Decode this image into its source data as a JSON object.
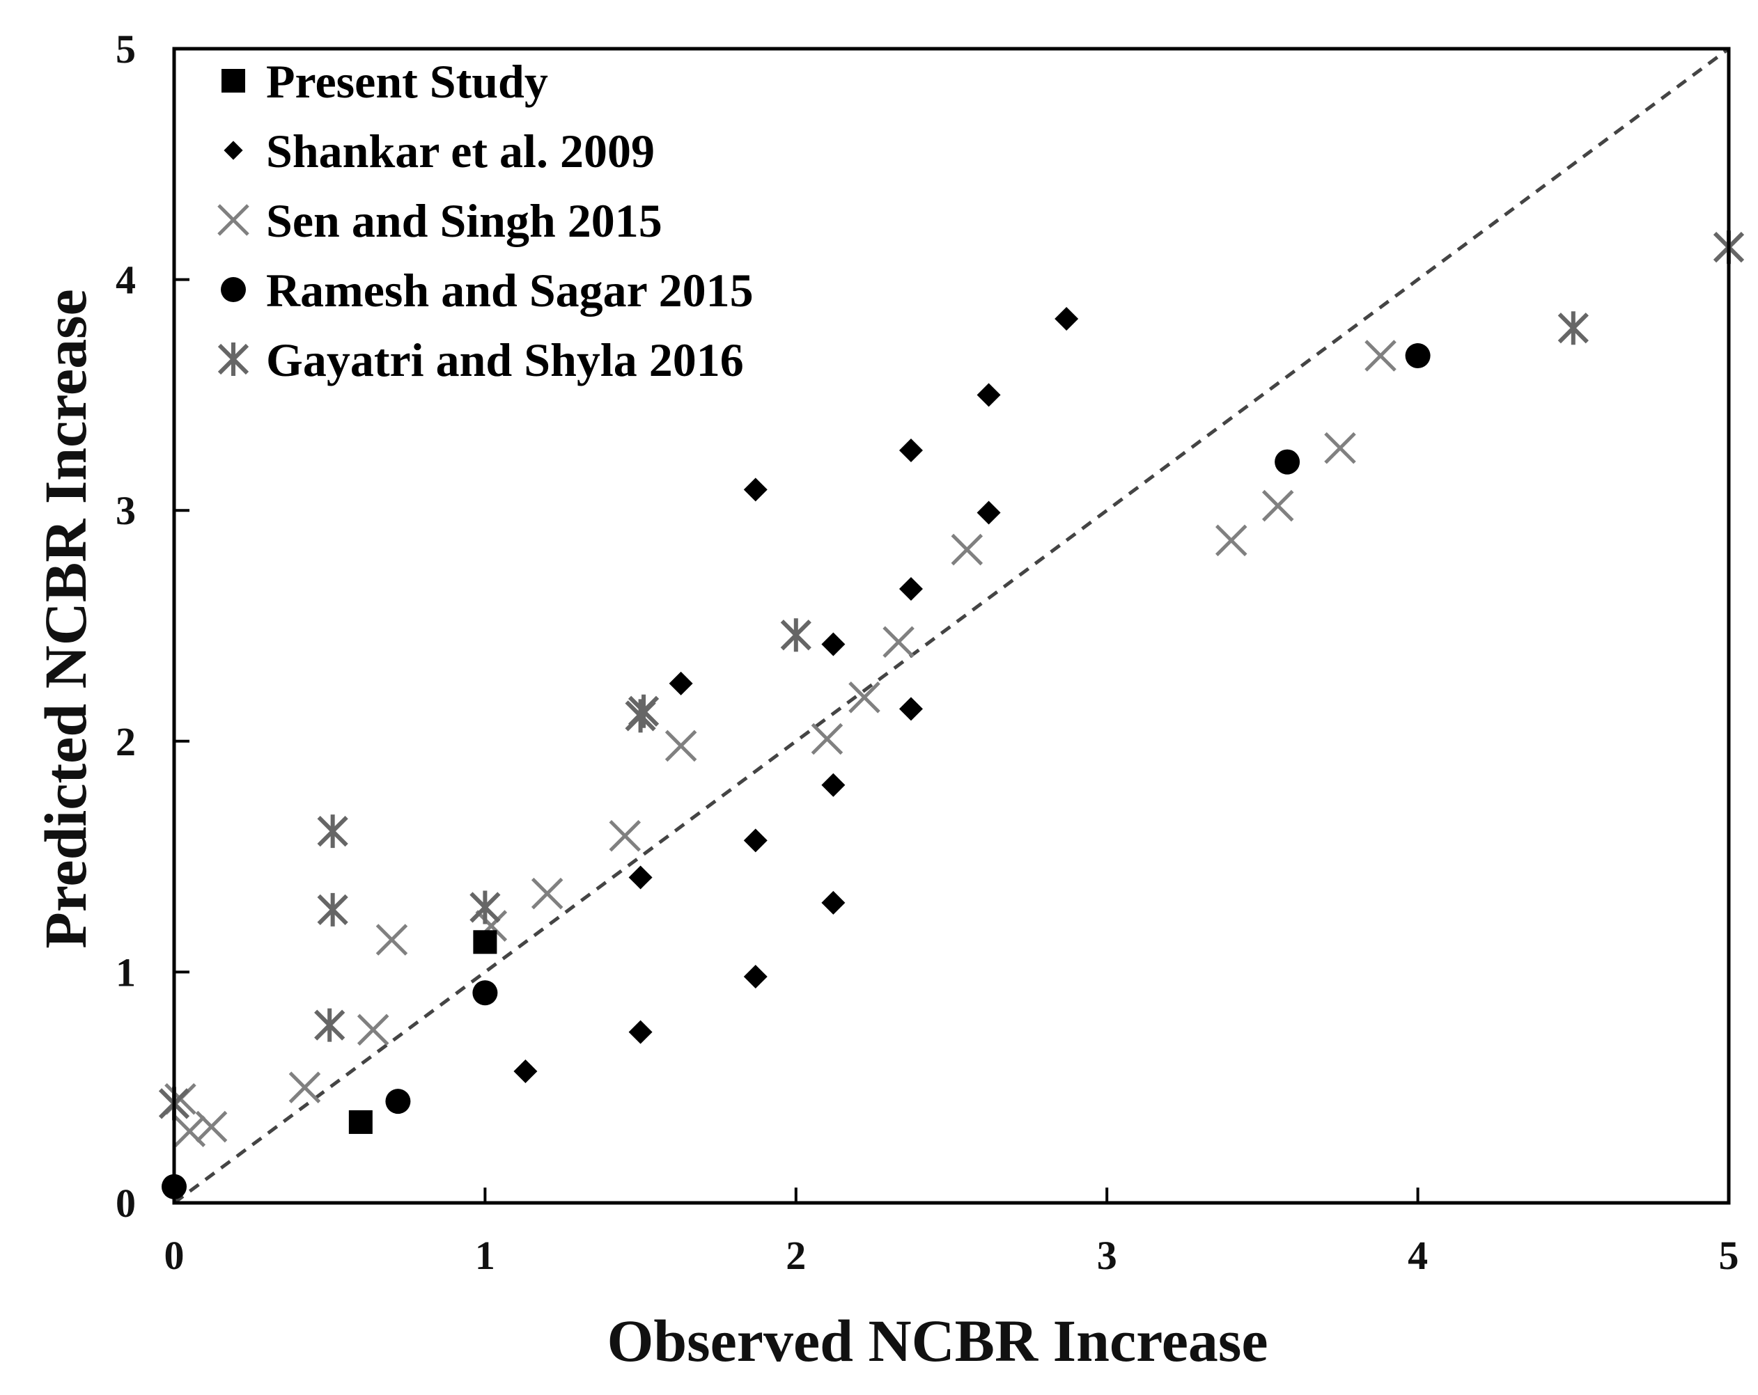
{
  "chart_data": {
    "type": "scatter",
    "title": "",
    "xlabel": "Observed NCBR Increase",
    "ylabel": "Predicted NCBR Increase",
    "xlim": [
      0,
      5
    ],
    "ylim": [
      0,
      5
    ],
    "xticks": [
      "0",
      "1",
      "2",
      "3",
      "4",
      "5"
    ],
    "yticks": [
      "0",
      "1",
      "2",
      "3",
      "4",
      "5"
    ],
    "legend_position": "top-left",
    "reference_line": {
      "name": "1:1 line",
      "style": "dashed",
      "from": [
        0,
        0
      ],
      "to": [
        5,
        5
      ]
    },
    "series": [
      {
        "name": "Present Study",
        "marker": "square",
        "color": "#000000",
        "points": [
          [
            0.6,
            0.35
          ],
          [
            1.0,
            1.13
          ]
        ]
      },
      {
        "name": "Shankar et al. 2009",
        "marker": "diamond",
        "color": "#000000",
        "points": [
          [
            1.13,
            0.57
          ],
          [
            1.5,
            0.74
          ],
          [
            1.5,
            1.41
          ],
          [
            1.63,
            2.25
          ],
          [
            1.87,
            0.98
          ],
          [
            1.87,
            1.57
          ],
          [
            1.87,
            3.09
          ],
          [
            2.12,
            1.3
          ],
          [
            2.12,
            1.81
          ],
          [
            2.12,
            2.42
          ],
          [
            2.37,
            2.14
          ],
          [
            2.37,
            2.66
          ],
          [
            2.37,
            3.26
          ],
          [
            2.62,
            2.99
          ],
          [
            2.62,
            3.5
          ],
          [
            2.87,
            3.83
          ]
        ]
      },
      {
        "name": "Sen and Singh 2015",
        "marker": "x",
        "color": "#808080",
        "points": [
          [
            0.02,
            0.45
          ],
          [
            0.05,
            0.31
          ],
          [
            0.12,
            0.33
          ],
          [
            0.42,
            0.5
          ],
          [
            0.64,
            0.75
          ],
          [
            0.7,
            1.14
          ],
          [
            1.02,
            1.2
          ],
          [
            1.2,
            1.34
          ],
          [
            1.45,
            1.59
          ],
          [
            1.63,
            1.98
          ],
          [
            2.1,
            2.01
          ],
          [
            2.22,
            2.19
          ],
          [
            2.33,
            2.43
          ],
          [
            2.55,
            2.83
          ],
          [
            3.4,
            2.87
          ],
          [
            3.55,
            3.02
          ],
          [
            3.75,
            3.27
          ],
          [
            3.88,
            3.67
          ]
        ]
      },
      {
        "name": "Ramesh and Sagar 2015",
        "marker": "circle",
        "color": "#000000",
        "points": [
          [
            0.0,
            0.07
          ],
          [
            0.72,
            0.44
          ],
          [
            1.0,
            0.91
          ],
          [
            3.58,
            3.21
          ],
          [
            4.0,
            3.67
          ]
        ]
      },
      {
        "name": "Gayatri and Shyla 2016",
        "marker": "asterisk",
        "color": "#666666",
        "points": [
          [
            0.0,
            0.43
          ],
          [
            0.5,
            0.77
          ],
          [
            0.51,
            1.27
          ],
          [
            0.51,
            1.61
          ],
          [
            1.0,
            1.28
          ],
          [
            1.5,
            2.11
          ],
          [
            1.51,
            2.13
          ],
          [
            2.0,
            2.46
          ],
          [
            4.5,
            3.79
          ],
          [
            5.0,
            4.14
          ]
        ]
      }
    ]
  }
}
